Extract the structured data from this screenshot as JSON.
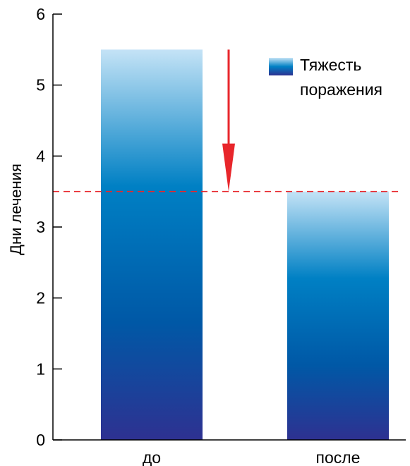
{
  "chart_data": {
    "type": "bar",
    "title": "",
    "xlabel": "",
    "ylabel": "Дни лечения",
    "categories": [
      "до",
      "после"
    ],
    "series": [
      {
        "name": "Тяжесть поражения",
        "values": [
          5.5,
          3.5
        ]
      }
    ],
    "legend_lines": [
      "Тяжесть",
      "поражения"
    ],
    "ylim": [
      0,
      6
    ],
    "yticks": [
      0,
      1,
      2,
      3,
      4,
      5,
      6
    ],
    "reference_line": {
      "y": 3.5,
      "style": "dashed",
      "color": "#e8262b"
    },
    "arrow": {
      "from": 5.5,
      "to": 3.5,
      "color": "#e8262b"
    },
    "grid": false,
    "legend_position": "top-right",
    "colors": {
      "bar_top": "#c4e3f6",
      "bar_mid": "#0080c4",
      "bar_bottom": "#2e3191",
      "accent": "#e8262b"
    }
  }
}
